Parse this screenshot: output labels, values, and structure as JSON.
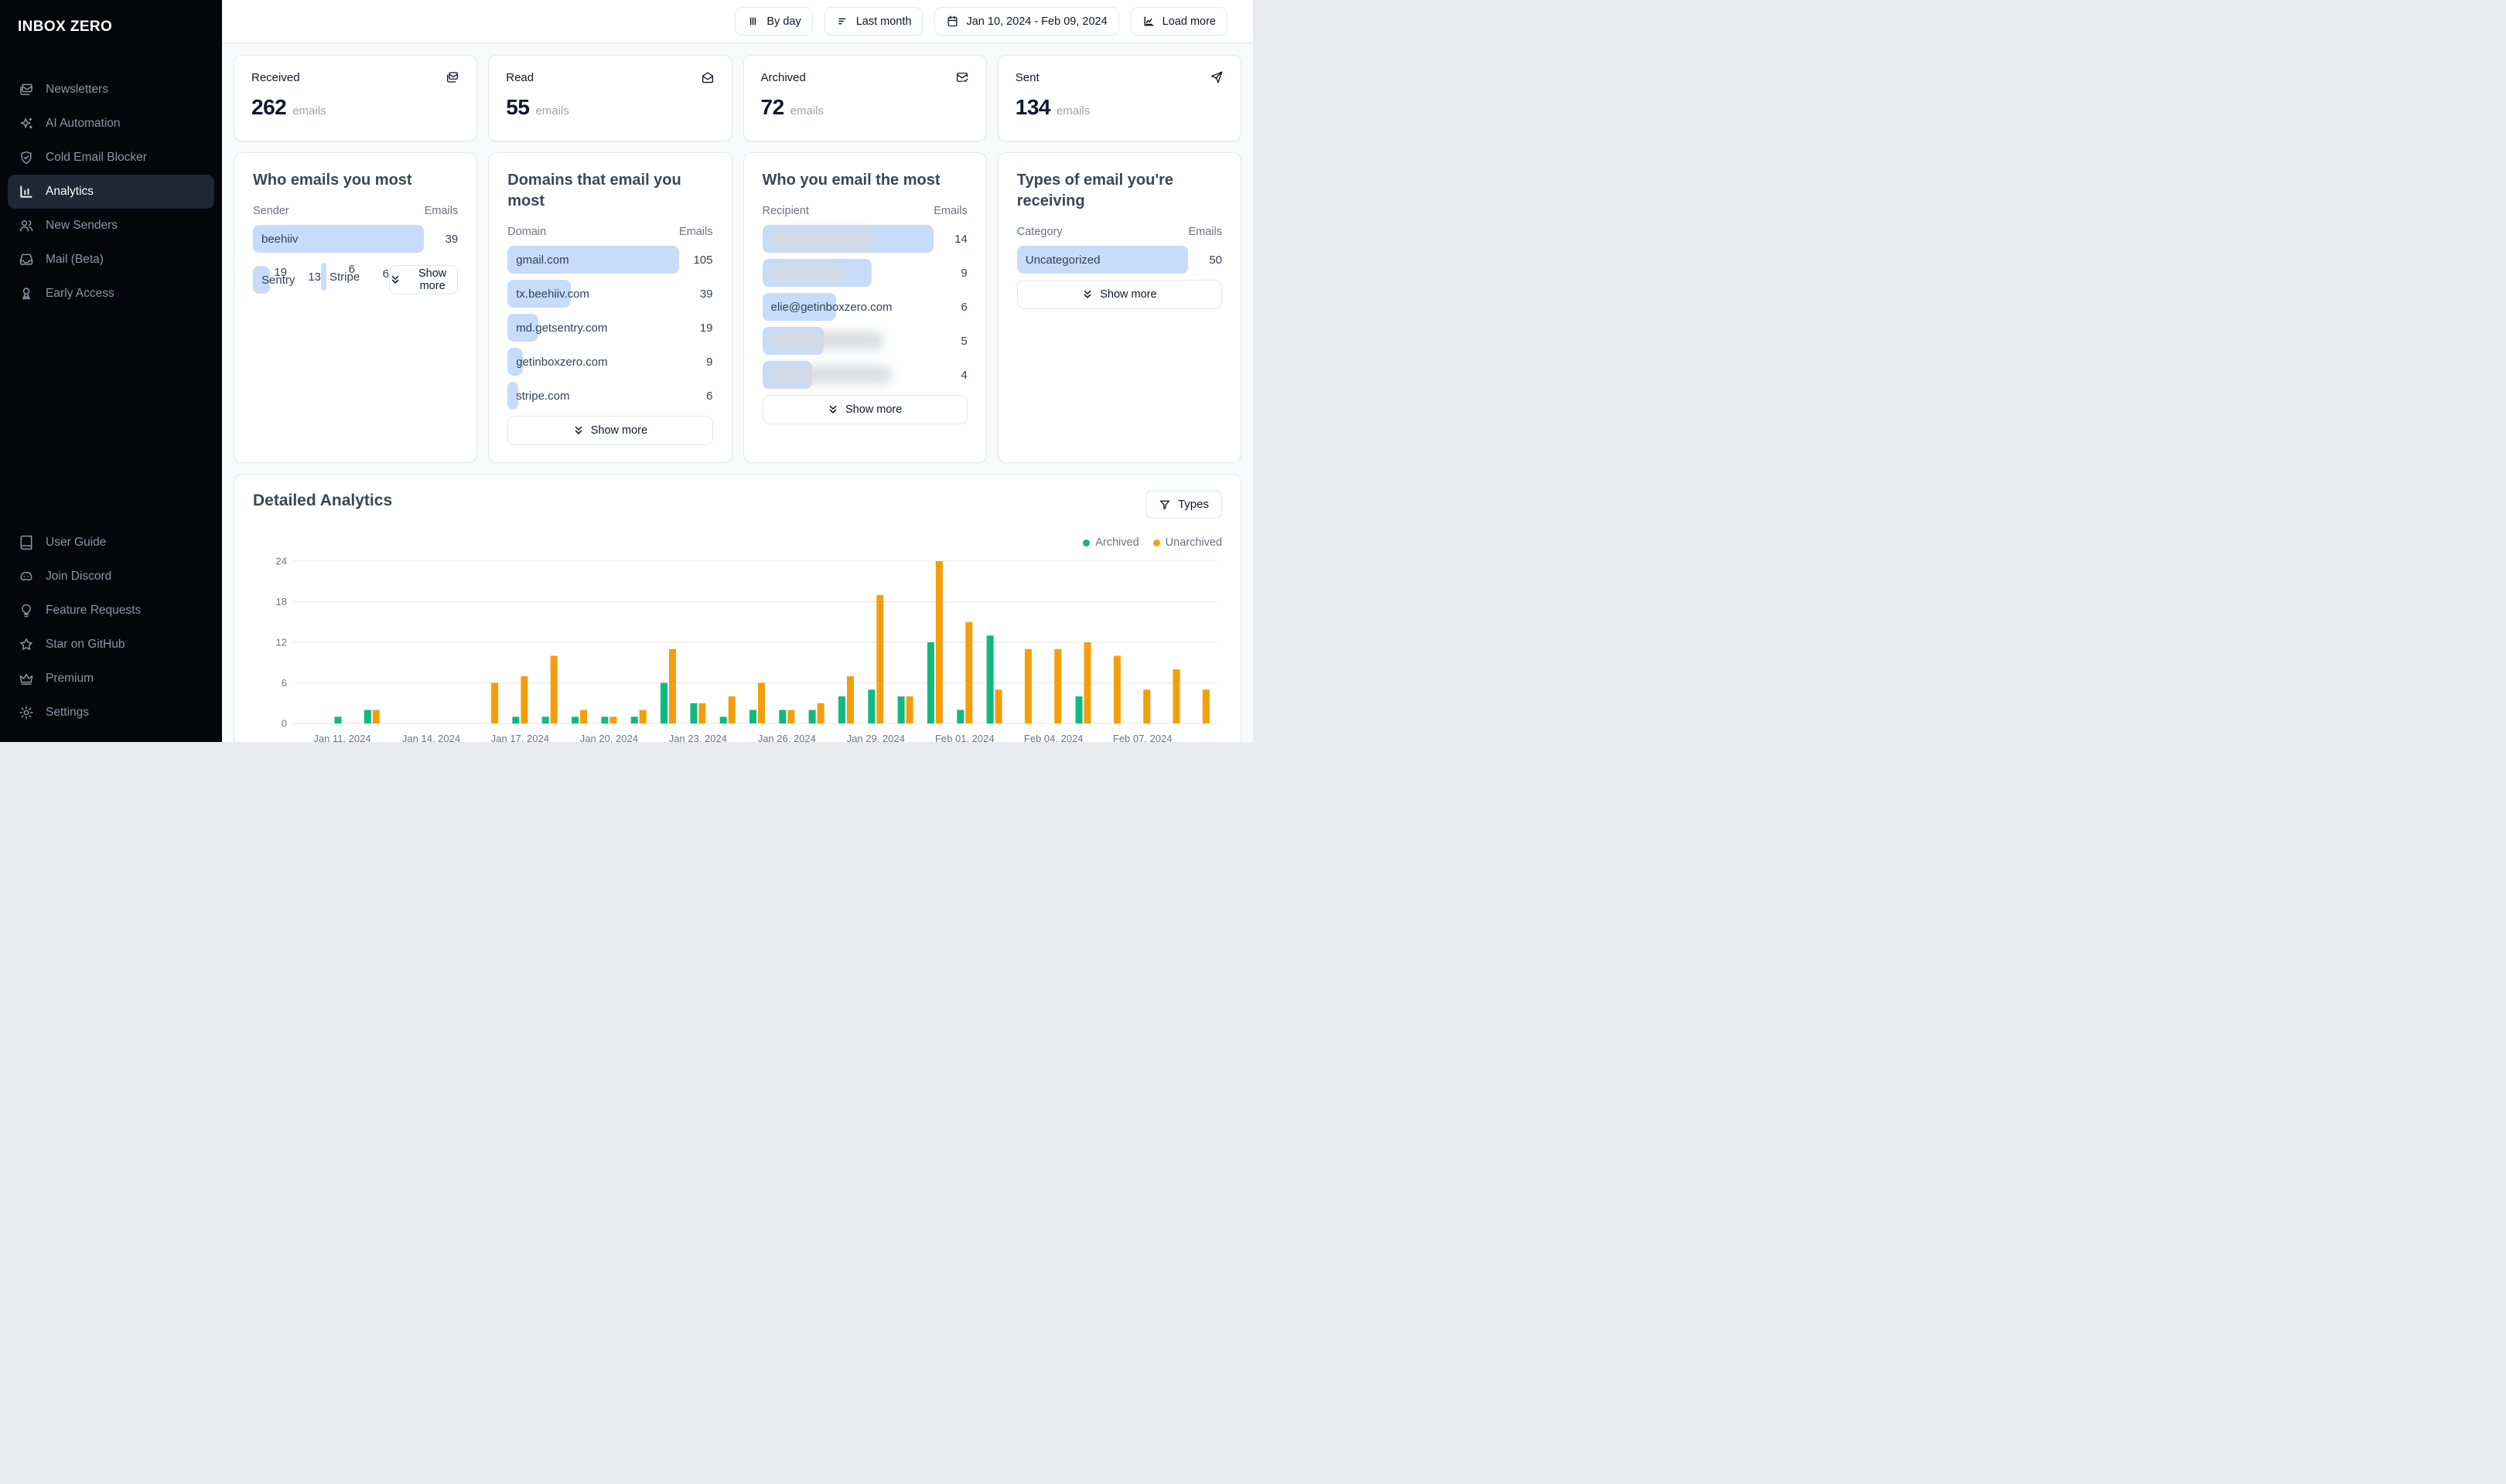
{
  "app": {
    "name": "INBOX ZERO"
  },
  "sidebar": {
    "items": [
      {
        "label": "Newsletters",
        "icon": "mail",
        "active": false
      },
      {
        "label": "AI Automation",
        "icon": "sparkles",
        "active": false
      },
      {
        "label": "Cold Email Blocker",
        "icon": "shield-check",
        "active": false
      },
      {
        "label": "Analytics",
        "icon": "bar-chart",
        "active": true
      },
      {
        "label": "New Senders",
        "icon": "users",
        "active": false
      },
      {
        "label": "Mail (Beta)",
        "icon": "inbox",
        "active": false
      },
      {
        "label": "Early Access",
        "icon": "ribbon",
        "active": false
      }
    ],
    "footer_items": [
      {
        "label": "User Guide",
        "icon": "book",
        "active": false
      },
      {
        "label": "Join Discord",
        "icon": "discord",
        "active": false
      },
      {
        "label": "Feature Requests",
        "icon": "lightbulb",
        "active": false
      },
      {
        "label": "Star on GitHub",
        "icon": "star",
        "active": false
      },
      {
        "label": "Premium",
        "icon": "crown",
        "active": false
      },
      {
        "label": "Settings",
        "icon": "gear",
        "active": false
      }
    ]
  },
  "topbar": {
    "buttons": [
      {
        "label": "By day",
        "icon": "columns"
      },
      {
        "label": "Last month",
        "icon": "list-filter"
      },
      {
        "label": "Jan 10, 2024 - Feb 09, 2024",
        "icon": "calendar"
      },
      {
        "label": "Load more",
        "icon": "chart-load"
      }
    ]
  },
  "stats": [
    {
      "title": "Received",
      "value": "262",
      "unit": "emails",
      "icon": "mails"
    },
    {
      "title": "Read",
      "value": "55",
      "unit": "emails",
      "icon": "mail-open"
    },
    {
      "title": "Archived",
      "value": "72",
      "unit": "emails",
      "icon": "mail-check"
    },
    {
      "title": "Sent",
      "value": "134",
      "unit": "emails",
      "icon": "send"
    }
  ],
  "panels": [
    {
      "title": "Who emails you most",
      "col1": "Sender",
      "col2": "Emails",
      "max": 39,
      "rows": [
        {
          "label": "beehiiv <buzz@tx.beehiiv.com>",
          "value": 39,
          "blurred": false
        },
        {
          "label": "Sentry <noreply@md.getsentry....",
          "value": 19,
          "blurred": false
        },
        {
          "label": "",
          "value": 13,
          "blurred": true,
          "blur_w": 72
        },
        {
          "label": "Stripe <notifications@stripe.co...",
          "value": 6,
          "blurred": false
        },
        {
          "label": "",
          "value": 6,
          "blurred": true,
          "blur_w": 70
        }
      ],
      "show_more": "Show more"
    },
    {
      "title": "Domains that email you most",
      "col1": "Domain",
      "col2": "Emails",
      "max": 105,
      "rows": [
        {
          "label": "gmail.com",
          "value": 105,
          "blurred": false
        },
        {
          "label": "tx.beehiiv.com",
          "value": 39,
          "blurred": false
        },
        {
          "label": "md.getsentry.com",
          "value": 19,
          "blurred": false
        },
        {
          "label": "getinboxzero.com",
          "value": 9,
          "blurred": false
        },
        {
          "label": "stripe.com",
          "value": 6,
          "blurred": false
        }
      ],
      "show_more": "Show more"
    },
    {
      "title": "Who you email the most",
      "col1": "Recipient",
      "col2": "Emails",
      "max": 14,
      "rows": [
        {
          "label": "",
          "value": 14,
          "blurred": true,
          "blur_w": 62
        },
        {
          "label": "",
          "value": 9,
          "blurred": true,
          "blur_w": 46
        },
        {
          "label": "elie@getinboxzero.com",
          "value": 6,
          "blurred": false
        },
        {
          "label": "",
          "value": 5,
          "blurred": true,
          "blur_w": 68
        },
        {
          "label": "",
          "value": 4,
          "blurred": true,
          "blur_w": 72
        }
      ],
      "show_more": "Show more"
    },
    {
      "title": "Types of email you're receiving",
      "col1": "Category",
      "col2": "Emails",
      "max": 50,
      "rows": [
        {
          "label": "Uncategorized",
          "value": 50,
          "blurred": false
        }
      ],
      "show_more": "Show more"
    }
  ],
  "detailed": {
    "title": "Detailed Analytics",
    "filter_button": "Types",
    "legend": [
      {
        "label": "Archived",
        "color": "#10b981"
      },
      {
        "label": "Unarchived",
        "color": "#f59e0b"
      }
    ]
  },
  "chart_data": {
    "type": "bar",
    "title": "Detailed Analytics",
    "xlabel": "",
    "ylabel": "",
    "ylim": [
      0,
      24
    ],
    "yticks": [
      0,
      6,
      12,
      18,
      24
    ],
    "grid": true,
    "legend_position": "top-right",
    "x": [
      "Jan 10, 2024",
      "Jan 11, 2024",
      "Jan 12, 2024",
      "Jan 13, 2024",
      "Jan 14, 2024",
      "Jan 15, 2024",
      "Jan 16, 2024",
      "Jan 17, 2024",
      "Jan 18, 2024",
      "Jan 19, 2024",
      "Jan 20, 2024",
      "Jan 21, 2024",
      "Jan 22, 2024",
      "Jan 23, 2024",
      "Jan 24, 2024",
      "Jan 25, 2024",
      "Jan 26, 2024",
      "Jan 27, 2024",
      "Jan 28, 2024",
      "Jan 29, 2024",
      "Jan 30, 2024",
      "Jan 31, 2024",
      "Feb 01, 2024",
      "Feb 02, 2024",
      "Feb 03, 2024",
      "Feb 04, 2024",
      "Feb 05, 2024",
      "Feb 06, 2024",
      "Feb 07, 2024",
      "Feb 08, 2024",
      "Feb 09, 2024"
    ],
    "tick_start_index": 1,
    "tick_every": 3,
    "series": [
      {
        "name": "Archived",
        "color": "#10b981",
        "values": [
          0,
          1,
          2,
          0,
          0,
          0,
          0,
          1,
          1,
          1,
          1,
          1,
          6,
          3,
          1,
          2,
          2,
          2,
          4,
          5,
          4,
          12,
          2,
          13,
          0,
          0,
          4,
          0,
          0,
          0,
          0
        ]
      },
      {
        "name": "Unarchived",
        "color": "#f59e0b",
        "values": [
          0,
          0,
          2,
          0,
          0,
          0,
          6,
          7,
          10,
          2,
          1,
          2,
          11,
          3,
          4,
          6,
          2,
          3,
          7,
          19,
          4,
          24,
          15,
          5,
          11,
          11,
          12,
          10,
          5,
          8,
          5
        ]
      }
    ]
  }
}
